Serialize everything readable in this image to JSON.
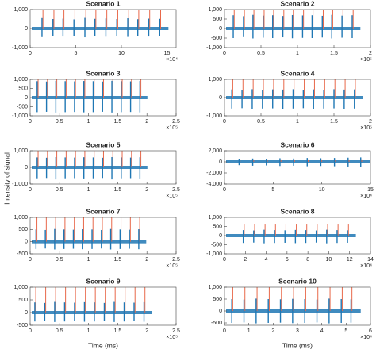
{
  "y_label": "Intensity of signal",
  "x_label": "Time (ms)",
  "chart_data": [
    {
      "type": "line",
      "title": "Scenario 1",
      "x_exponent": "×10⁴",
      "xlim": [
        0,
        16
      ],
      "xticks": [
        0,
        5,
        10,
        15
      ],
      "ylim": [
        -1000,
        1000
      ],
      "yticks": [
        {
          "value": -1000,
          "label": "-1,000"
        },
        0,
        {
          "value": 1000,
          "label": "1,000"
        }
      ],
      "x": [
        1.3,
        2.5,
        3.6,
        4.8,
        6.0,
        7.1,
        8.3,
        9.5,
        10.7,
        11.8,
        13.0,
        14.2
      ],
      "series": [
        {
          "color": "#1f77b4",
          "values": [
            550,
            500,
            520,
            480,
            560,
            510,
            530,
            500,
            540,
            490,
            520,
            510
          ]
        },
        {
          "color": "#1f77b4",
          "values": [
            -450,
            -400,
            -420,
            -380,
            -460,
            -410,
            -430,
            -400,
            -440,
            -390,
            -420,
            -410
          ]
        },
        {
          "color": "#e8684a",
          "values": [
            1000,
            1000,
            1000,
            1000,
            1000,
            1000,
            1000,
            1000,
            1000,
            1000,
            1000,
            1000
          ]
        }
      ]
    },
    {
      "type": "line",
      "title": "Scenario 2",
      "x_exponent": "×10⁵",
      "xlim": [
        0,
        2
      ],
      "xticks": [
        0,
        0.5,
        1,
        1.5,
        2
      ],
      "ylim": [
        -1000,
        1000
      ],
      "yticks": [
        {
          "value": -1000,
          "label": "-1,000"
        },
        -500,
        0,
        500,
        {
          "value": 1000,
          "label": "1,000"
        }
      ],
      "x": [
        0.12,
        0.26,
        0.39,
        0.53,
        0.66,
        0.8,
        0.93,
        1.07,
        1.2,
        1.34,
        1.47,
        1.61,
        1.75
      ],
      "series": [
        {
          "color": "#1f77b4",
          "values": [
            700,
            650,
            720,
            680,
            700,
            660,
            710,
            690,
            700,
            670,
            720,
            680,
            700
          ]
        },
        {
          "color": "#1f77b4",
          "values": [
            -500,
            -450,
            -520,
            -480,
            -500,
            -460,
            -510,
            -490,
            -500,
            -470,
            -520,
            -480,
            -500
          ]
        },
        {
          "color": "#e8684a",
          "values": [
            1000,
            1000,
            1000,
            1000,
            1000,
            1000,
            1000,
            1000,
            1000,
            1000,
            1000,
            1000,
            1000
          ]
        }
      ]
    },
    {
      "type": "line",
      "title": "Scenario 3",
      "x_exponent": "×10⁵",
      "xlim": [
        0,
        2.5
      ],
      "xticks": [
        0,
        0.5,
        1,
        1.5,
        2,
        2.5
      ],
      "ylim": [
        -1000,
        1000
      ],
      "yticks": [
        {
          "value": -1000,
          "label": "-1,000"
        },
        -500,
        0,
        500,
        {
          "value": 1000,
          "label": "1,000"
        }
      ],
      "x": [
        0.12,
        0.28,
        0.44,
        0.6,
        0.76,
        0.92,
        1.08,
        1.24,
        1.4,
        1.56,
        1.72,
        1.88
      ],
      "series": [
        {
          "color": "#1f77b4",
          "values": [
            900,
            880,
            920,
            900,
            890,
            910,
            900,
            880,
            920,
            900,
            890,
            910
          ]
        },
        {
          "color": "#1f77b4",
          "values": [
            -800,
            -780,
            -820,
            -800,
            -790,
            -810,
            -800,
            -780,
            -820,
            -800,
            -790,
            -810
          ]
        },
        {
          "color": "#e8684a",
          "values": [
            1000,
            1000,
            1000,
            1000,
            1000,
            1000,
            1000,
            1000,
            1000,
            1000,
            1000,
            1000
          ]
        }
      ]
    },
    {
      "type": "line",
      "title": "Scenario 4",
      "x_exponent": "×10⁵",
      "xlim": [
        0,
        2
      ],
      "xticks": [
        0,
        0.5,
        1,
        1.5,
        2
      ],
      "ylim": [
        -1000,
        1000
      ],
      "yticks": [
        {
          "value": -1000,
          "label": "-1,000"
        },
        0,
        {
          "value": 1000,
          "label": "1,000"
        }
      ],
      "x": [
        0.1,
        0.24,
        0.38,
        0.52,
        0.66,
        0.8,
        0.94,
        1.08,
        1.22,
        1.36,
        1.5,
        1.64,
        1.78
      ],
      "series": [
        {
          "color": "#1f77b4",
          "values": [
            450,
            420,
            460,
            430,
            450,
            440,
            460,
            420,
            450,
            430,
            460,
            440,
            450
          ]
        },
        {
          "color": "#1f77b4",
          "values": [
            -600,
            -580,
            -620,
            -600,
            -590,
            -610,
            -600,
            -580,
            -620,
            -600,
            -590,
            -610,
            -600
          ]
        },
        {
          "color": "#e8684a",
          "values": [
            1000,
            1000,
            1000,
            1000,
            1000,
            1000,
            1000,
            1000,
            1000,
            1000,
            1000,
            1000,
            1000
          ]
        }
      ]
    },
    {
      "type": "line",
      "title": "Scenario 5",
      "x_exponent": "×10⁵",
      "xlim": [
        0,
        2.5
      ],
      "xticks": [
        0,
        0.5,
        1,
        1.5,
        2,
        2.5
      ],
      "ylim": [
        -1000,
        1000
      ],
      "yticks": [
        {
          "value": -1000,
          "label": "-1,000"
        },
        0,
        {
          "value": 1000,
          "label": "1,000"
        }
      ],
      "x": [
        0.12,
        0.28,
        0.44,
        0.6,
        0.76,
        0.92,
        1.08,
        1.24,
        1.4,
        1.56,
        1.72,
        1.88
      ],
      "series": [
        {
          "color": "#1f77b4",
          "values": [
            600,
            580,
            620,
            600,
            590,
            610,
            600,
            580,
            620,
            600,
            590,
            610
          ]
        },
        {
          "color": "#1f77b4",
          "values": [
            -700,
            -680,
            -720,
            -700,
            -690,
            -710,
            -700,
            -680,
            -720,
            -700,
            -690,
            -710
          ]
        },
        {
          "color": "#e8684a",
          "values": [
            1000,
            1000,
            1000,
            1000,
            1000,
            1000,
            1000,
            1000,
            1000,
            1000,
            1000,
            1000
          ]
        }
      ]
    },
    {
      "type": "line",
      "title": "Scenario 6",
      "x_exponent": "×10⁴",
      "xlim": [
        0,
        15
      ],
      "xticks": [
        0,
        5,
        10,
        15
      ],
      "ylim": [
        -4000,
        2000
      ],
      "yticks": [
        {
          "value": -4000,
          "label": "-4,000"
        },
        {
          "value": -2000,
          "label": "-2,000"
        },
        0,
        {
          "value": 2000,
          "label": "2,000"
        }
      ],
      "x": [
        1.5,
        2.9,
        4.3,
        5.7,
        7.1,
        8.5,
        9.9,
        11.3,
        12.7,
        14.0
      ],
      "series": [
        {
          "color": "#1f77b4",
          "values": [
            500,
            600,
            550,
            650,
            600,
            700,
            650,
            700,
            750,
            800
          ]
        },
        {
          "color": "#1f77b4",
          "values": [
            -600,
            -700,
            -650,
            -750,
            -700,
            -800,
            -750,
            -800,
            -850,
            -900
          ]
        },
        {
          "color": "#e8684a",
          "values": [
            300,
            300,
            300,
            300,
            300,
            300,
            300,
            300,
            300,
            300
          ]
        }
      ]
    },
    {
      "type": "line",
      "title": "Scenario 7",
      "x_exponent": "×10⁵",
      "xlim": [
        0,
        2.5
      ],
      "xticks": [
        0,
        0.5,
        1,
        1.5,
        2,
        2.5
      ],
      "ylim": [
        -500,
        1000
      ],
      "yticks": [
        -500,
        0,
        500,
        {
          "value": 1000,
          "label": "1,000"
        }
      ],
      "x": [
        0.1,
        0.26,
        0.42,
        0.58,
        0.74,
        0.9,
        1.06,
        1.22,
        1.38,
        1.54,
        1.7,
        1.86
      ],
      "series": [
        {
          "color": "#1f77b4",
          "values": [
            500,
            480,
            520,
            500,
            490,
            510,
            500,
            480,
            520,
            500,
            490,
            510
          ]
        },
        {
          "color": "#1f77b4",
          "values": [
            -300,
            -280,
            -320,
            -300,
            -290,
            -310,
            -300,
            -280,
            -320,
            -300,
            -290,
            -310
          ]
        },
        {
          "color": "#e8684a",
          "values": [
            1000,
            1000,
            1000,
            1000,
            1000,
            1000,
            1000,
            1000,
            1000,
            1000,
            1000,
            1000
          ]
        }
      ]
    },
    {
      "type": "line",
      "title": "Scenario 8",
      "x_exponent": "×10⁴",
      "xlim": [
        0,
        14
      ],
      "xticks": [
        0,
        2,
        4,
        6,
        8,
        10,
        12,
        14
      ],
      "ylim": [
        -1000,
        1000
      ],
      "yticks": [
        {
          "value": -1000,
          "label": "-1,000"
        },
        -500,
        0,
        500,
        {
          "value": 1000,
          "label": "1,000"
        }
      ],
      "x": [
        1.8,
        2.8,
        3.8,
        4.8,
        5.8,
        6.8,
        7.8,
        8.8,
        9.8,
        10.8,
        11.8
      ],
      "series": [
        {
          "color": "#1f77b4",
          "values": [
            300,
            280,
            320,
            300,
            290,
            310,
            300,
            280,
            320,
            300,
            290
          ]
        },
        {
          "color": "#1f77b4",
          "values": [
            -400,
            -380,
            -420,
            -400,
            -390,
            -410,
            -400,
            -380,
            -420,
            -400,
            -390
          ]
        },
        {
          "color": "#e8684a",
          "values": [
            650,
            650,
            650,
            650,
            650,
            650,
            650,
            650,
            650,
            650,
            650
          ]
        }
      ]
    },
    {
      "type": "line",
      "title": "Scenario 9",
      "x_exponent": "×10⁵",
      "xlim": [
        0,
        2.5
      ],
      "xticks": [
        0,
        0.5,
        1,
        1.5,
        2,
        2.5
      ],
      "ylim": [
        -500,
        1000
      ],
      "yticks": [
        -500,
        0,
        500,
        {
          "value": 1000,
          "label": "1,000"
        }
      ],
      "x": [
        0.08,
        0.25,
        0.42,
        0.59,
        0.76,
        0.93,
        1.1,
        1.27,
        1.44,
        1.61,
        1.78,
        1.95
      ],
      "series": [
        {
          "color": "#1f77b4",
          "values": [
            400,
            380,
            420,
            400,
            390,
            410,
            400,
            380,
            420,
            400,
            390,
            410
          ]
        },
        {
          "color": "#1f77b4",
          "values": [
            -350,
            -330,
            -370,
            -350,
            -340,
            -360,
            -350,
            -330,
            -370,
            -350,
            -340,
            -360
          ]
        },
        {
          "color": "#e8684a",
          "values": [
            1000,
            1000,
            1000,
            1000,
            1000,
            1000,
            1000,
            1000,
            1000,
            1000,
            1000,
            1000
          ]
        }
      ]
    },
    {
      "type": "line",
      "title": "Scenario 10",
      "x_exponent": "×10⁴",
      "xlim": [
        0,
        6
      ],
      "xticks": [
        0,
        1,
        2,
        3,
        4,
        5,
        6
      ],
      "ylim": [
        -600,
        1000
      ],
      "yticks": [
        -500,
        0,
        500,
        {
          "value": 1000,
          "label": "1,000"
        }
      ],
      "x": [
        0.3,
        0.8,
        1.3,
        1.8,
        2.3,
        2.8,
        3.3,
        3.8,
        4.3,
        4.8,
        5.2
      ],
      "series": [
        {
          "color": "#1f77b4",
          "values": [
            500,
            480,
            520,
            500,
            490,
            510,
            500,
            480,
            520,
            500,
            490
          ]
        },
        {
          "color": "#1f77b4",
          "values": [
            -500,
            -480,
            -520,
            -500,
            -490,
            -510,
            -500,
            -480,
            -520,
            -500,
            -490
          ]
        },
        {
          "color": "#e8684a",
          "values": [
            1000,
            1000,
            1000,
            1000,
            1000,
            1000,
            1000,
            1000,
            1000,
            1000,
            1000
          ]
        }
      ]
    }
  ]
}
